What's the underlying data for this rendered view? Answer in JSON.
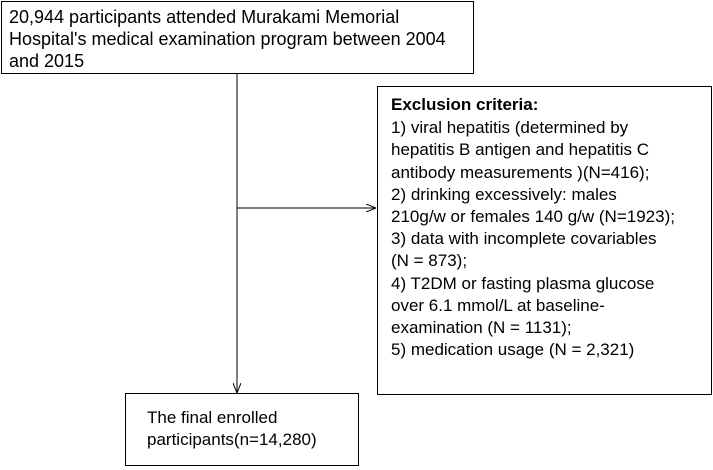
{
  "top_box": {
    "lines": [
      "20,944 participants attended Murakami Memorial",
      "Hospital's medical examination program between 2004",
      "and 2015"
    ]
  },
  "exclusion_box": {
    "heading": "Exclusion criteria:",
    "lines": [
      "1) viral hepatitis (determined by",
      "hepatitis B antigen and hepatitis C",
      "antibody measurements )(N=416);",
      " 2) drinking excessively: males",
      "210g/w or females 140 g/w (N=1923);",
      " 3) data with incomplete covariables",
      "(N = 873);",
      "4) T2DM or fasting plasma glucose",
      "over 6.1 mmol/L at baseline-",
      "examination (N = 1131);",
      "5) medication usage (N = 2,321)"
    ]
  },
  "final_box": {
    "lines": [
      "The final enrolled",
      "participants(n=14,280)"
    ]
  },
  "colors": {
    "line": "#000000",
    "background": "#ffffff"
  }
}
